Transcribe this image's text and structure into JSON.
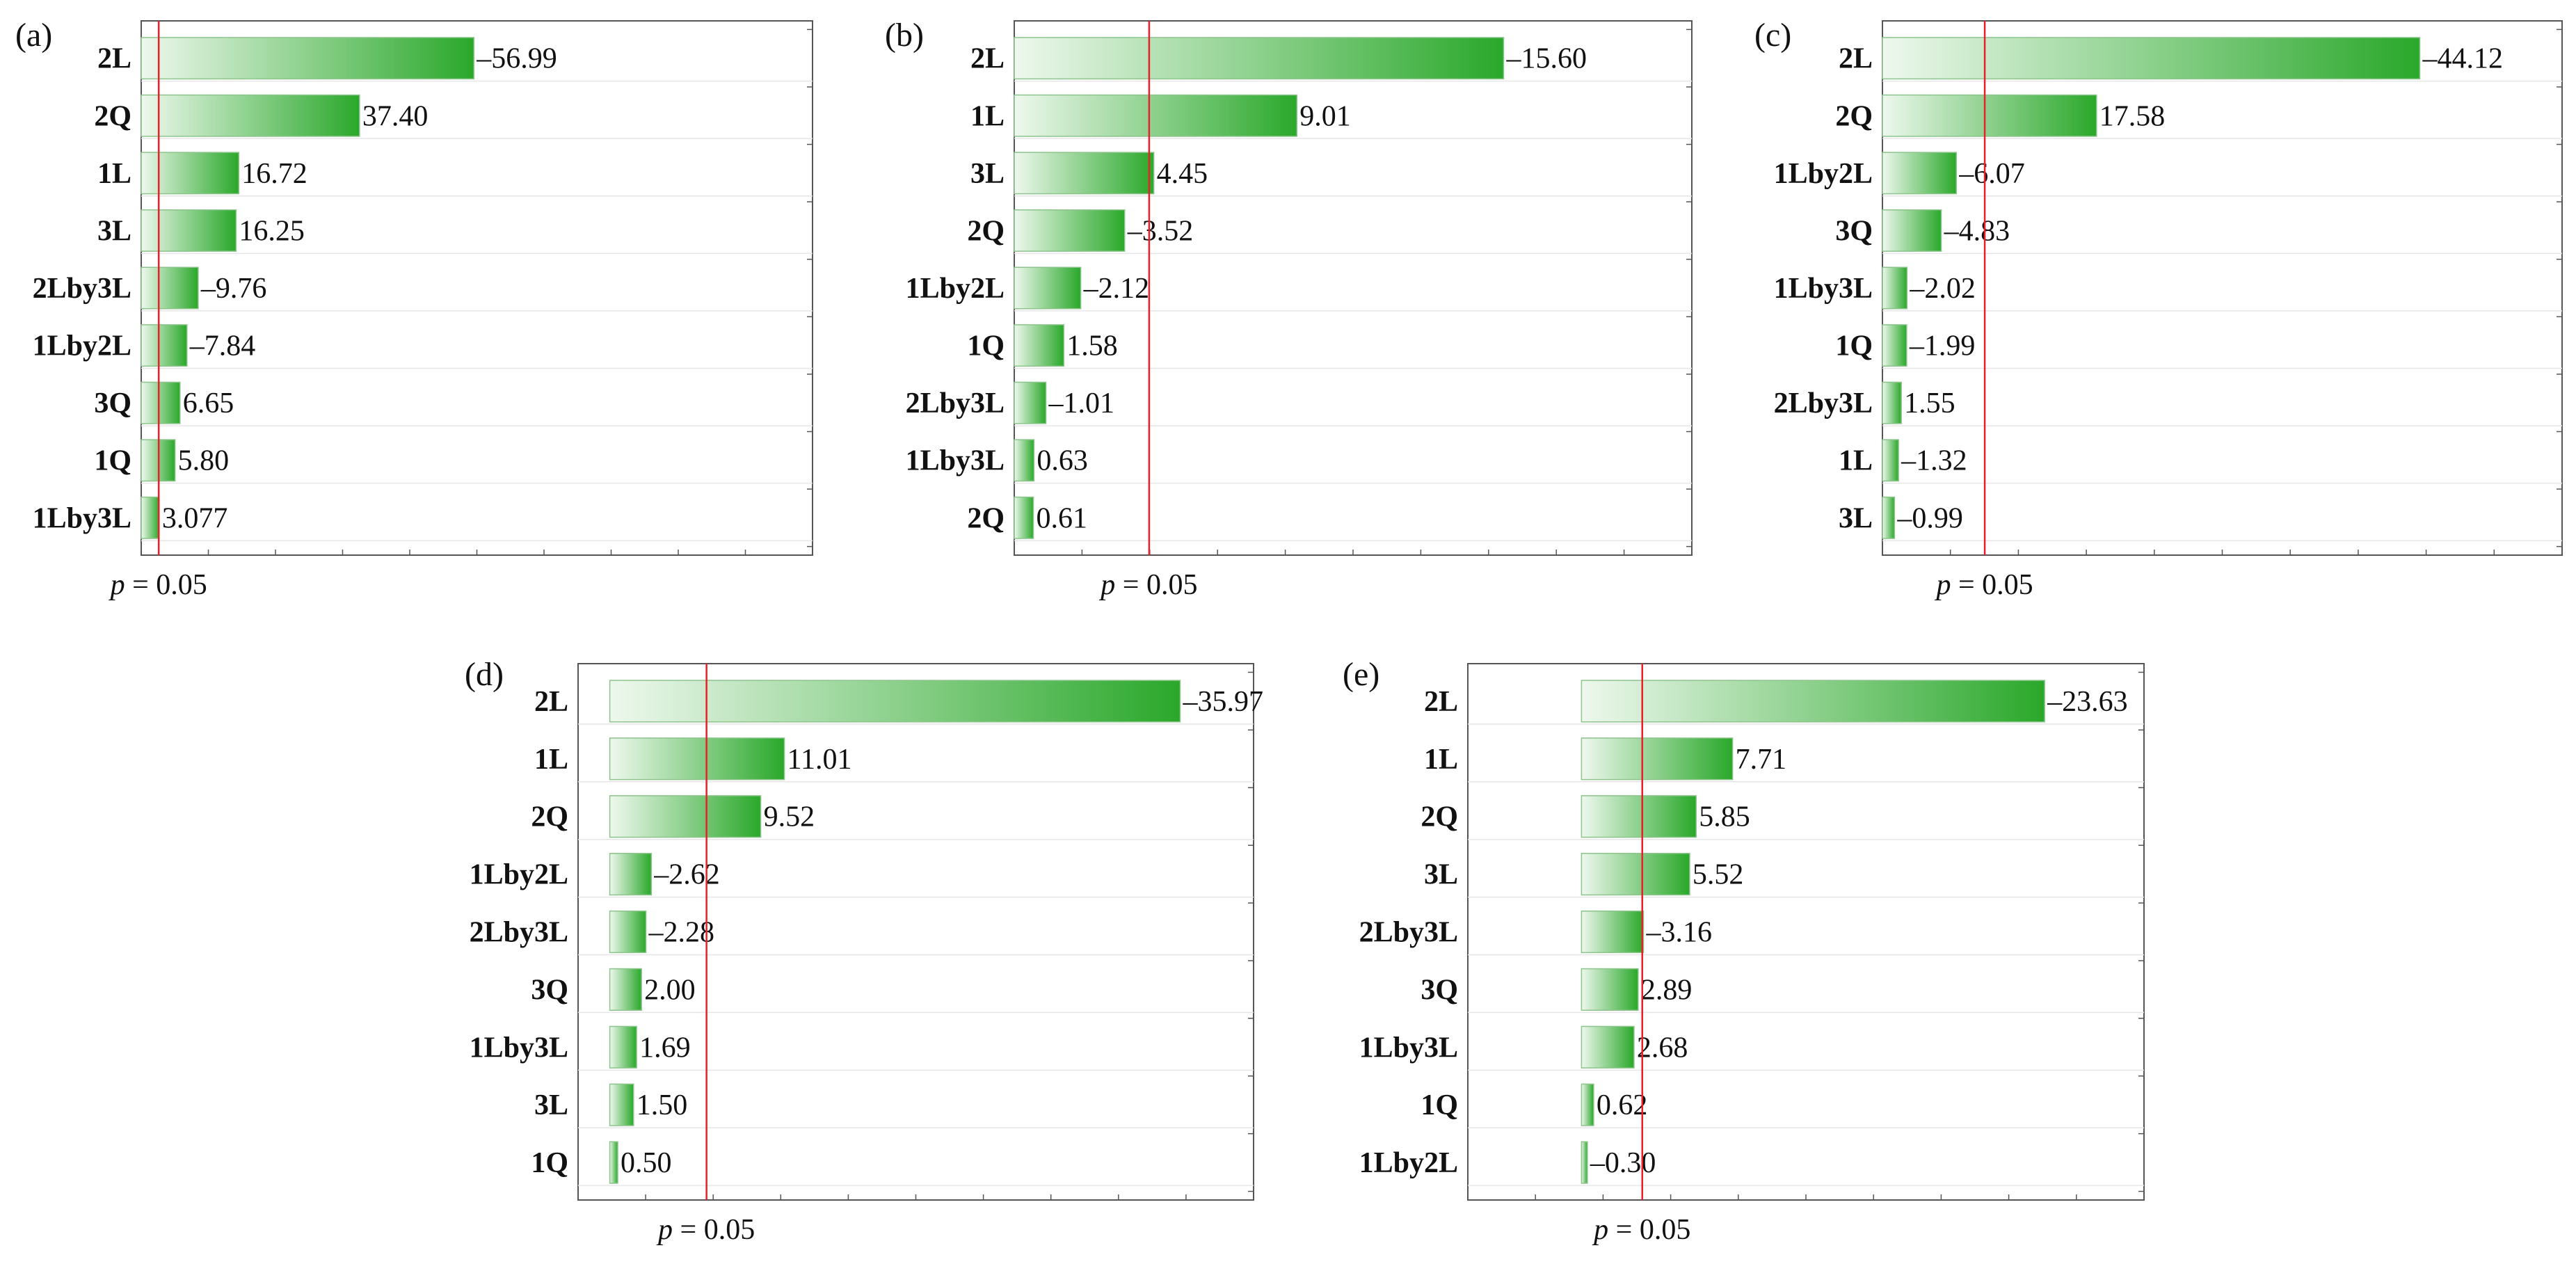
{
  "figure": {
    "p_text_prefix": "p",
    "p_text_suffix": " = 0.05",
    "bar_color_start": "#eef8ee",
    "bar_color_end": "#2aa82a",
    "bar_stroke": "#8cc48c",
    "threshold_color": "#e8202a",
    "frame_color": "#555555",
    "grid_color": "#e6e6e6"
  },
  "chart_data": [
    {
      "type": "bar",
      "orientation": "horizontal",
      "panel": "(a)",
      "categories": [
        "2L",
        "2Q",
        "1L",
        "3L",
        "2Lby3L",
        "1Lby2L",
        "3Q",
        "1Q",
        "1Lby3L"
      ],
      "values": [
        56.99,
        37.4,
        16.72,
        16.25,
        9.76,
        7.84,
        6.65,
        5.8,
        3.077
      ],
      "labels": [
        "–56.99",
        "37.40",
        "16.72",
        "16.25",
        "–9.76",
        "–7.84",
        "6.65",
        "5.80",
        "3.077"
      ],
      "xlim": [
        0,
        115
      ],
      "threshold": 3.0,
      "threshold_label": "p = 0.05"
    },
    {
      "type": "bar",
      "orientation": "horizontal",
      "panel": "(b)",
      "categories": [
        "2L",
        "1L",
        "3L",
        "2Q",
        "1Lby2L",
        "1Q",
        "2Lby3L",
        "1Lby3L",
        "2Q"
      ],
      "values": [
        15.6,
        9.01,
        4.45,
        3.52,
        2.12,
        1.58,
        1.01,
        0.63,
        0.61
      ],
      "labels": [
        "–15.60",
        "9.01",
        "4.45",
        "–3.52",
        "–2.12",
        "1.58",
        "–1.01",
        "0.63",
        "0.61"
      ],
      "xlim": [
        0,
        21.6
      ],
      "threshold": 4.3,
      "threshold_label": "p = 0.05"
    },
    {
      "type": "bar",
      "orientation": "horizontal",
      "panel": "(c)",
      "categories": [
        "2L",
        "2Q",
        "1Lby2L",
        "3Q",
        "1Lby3L",
        "1Q",
        "2Lby3L",
        "1L",
        "3L"
      ],
      "values": [
        44.12,
        17.58,
        6.07,
        4.83,
        2.02,
        1.99,
        1.55,
        1.32,
        0.99
      ],
      "labels": [
        "–44.12",
        "17.58",
        "–6.07",
        "–4.83",
        "–2.02",
        "–1.99",
        "1.55",
        "–1.32",
        "–0.99"
      ],
      "xlim": [
        0,
        55.8
      ],
      "threshold": 8.4,
      "threshold_label": "p = 0.05"
    },
    {
      "type": "bar",
      "orientation": "horizontal",
      "panel": "(d)",
      "categories": [
        "2L",
        "1L",
        "2Q",
        "1Lby2L",
        "2Lby3L",
        "3Q",
        "1Lby3L",
        "3L",
        "1Q"
      ],
      "values": [
        35.97,
        11.01,
        9.52,
        2.62,
        2.28,
        2.0,
        1.69,
        1.5,
        0.5
      ],
      "labels": [
        "–35.97",
        "11.01",
        "9.52",
        "–2.62",
        "–2.28",
        "2.00",
        "1.69",
        "1.50",
        "0.50"
      ],
      "xlim": [
        -2.0,
        40.6
      ],
      "threshold": 6.1,
      "threshold_label": "p = 0.05"
    },
    {
      "type": "bar",
      "orientation": "horizontal",
      "panel": "(e)",
      "categories": [
        "2L",
        "1L",
        "2Q",
        "3L",
        "2Lby3L",
        "3Q",
        "1Lby3L",
        "1Q",
        "1Lby2L"
      ],
      "values": [
        23.63,
        7.71,
        5.85,
        5.52,
        3.16,
        2.89,
        2.68,
        0.62,
        0.3
      ],
      "labels": [
        "–23.63",
        "7.71",
        "5.85",
        "5.52",
        "–3.16",
        "2.89",
        "2.68",
        "0.62",
        "–0.30"
      ],
      "xlim": [
        -5.8,
        28.7
      ],
      "threshold": 3.1,
      "threshold_label": "p = 0.05"
    }
  ]
}
